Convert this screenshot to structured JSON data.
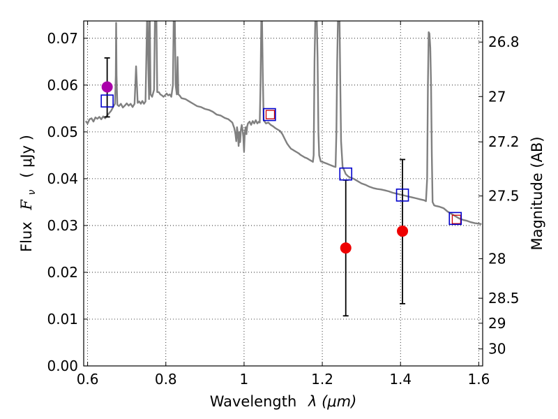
{
  "chart_data": {
    "type": "scatter",
    "xlabel_text": "Wavelength",
    "xlabel_math": "λ (μm)",
    "ylabel_text": "Flux",
    "ylabel_math": "F",
    "ylabel_math_sub": "ν",
    "ylabel_unit": "( μJy )",
    "ylabel_right": "Magnitude (AB)",
    "xlim": [
      0.59,
      1.61
    ],
    "ylim": [
      0.0,
      0.0737
    ],
    "grid": true,
    "x_ticks": [
      {
        "value": 0.6,
        "label": "0.6"
      },
      {
        "value": 0.8,
        "label": "0.8"
      },
      {
        "value": 1.0,
        "label": "1"
      },
      {
        "value": 1.2,
        "label": "1.2"
      },
      {
        "value": 1.4,
        "label": "1.4"
      },
      {
        "value": 1.6,
        "label": "1.6"
      }
    ],
    "y_ticks": [
      {
        "value": 0.0,
        "label": "0.00"
      },
      {
        "value": 0.01,
        "label": "0.01"
      },
      {
        "value": 0.02,
        "label": "0.02"
      },
      {
        "value": 0.03,
        "label": "0.03"
      },
      {
        "value": 0.04,
        "label": "0.04"
      },
      {
        "value": 0.05,
        "label": "0.05"
      },
      {
        "value": 0.06,
        "label": "0.06"
      },
      {
        "value": 0.07,
        "label": "0.07"
      }
    ],
    "right_ticks": [
      {
        "mag": 26.8,
        "label": "26.8"
      },
      {
        "mag": 27.0,
        "label": "27"
      },
      {
        "mag": 27.2,
        "label": "27.2"
      },
      {
        "mag": 27.5,
        "label": "27.5"
      },
      {
        "mag": 28.0,
        "label": "28"
      },
      {
        "mag": 28.5,
        "label": "28.5"
      },
      {
        "mag": 29.0,
        "label": "29"
      },
      {
        "mag": 30.0,
        "label": "30"
      }
    ],
    "model_spectrum": {
      "color": "#808080",
      "points": [
        [
          0.595,
          0.0523
        ],
        [
          0.6,
          0.0518
        ],
        [
          0.605,
          0.0527
        ],
        [
          0.61,
          0.0529
        ],
        [
          0.615,
          0.0522
        ],
        [
          0.62,
          0.0531
        ],
        [
          0.625,
          0.0528
        ],
        [
          0.63,
          0.0532
        ],
        [
          0.635,
          0.0527
        ],
        [
          0.64,
          0.0533
        ],
        [
          0.645,
          0.0529
        ],
        [
          0.65,
          0.0535
        ],
        [
          0.655,
          0.054
        ],
        [
          0.66,
          0.0545
        ],
        [
          0.665,
          0.0553
        ],
        [
          0.67,
          0.056
        ],
        [
          0.672,
          0.062
        ],
        [
          0.673,
          0.0733
        ],
        [
          0.674,
          0.062
        ],
        [
          0.676,
          0.0558
        ],
        [
          0.68,
          0.0555
        ],
        [
          0.685,
          0.056
        ],
        [
          0.69,
          0.0552
        ],
        [
          0.695,
          0.0556
        ],
        [
          0.7,
          0.0561
        ],
        [
          0.705,
          0.0556
        ],
        [
          0.71,
          0.056
        ],
        [
          0.715,
          0.0553
        ],
        [
          0.72,
          0.056
        ],
        [
          0.722,
          0.06
        ],
        [
          0.724,
          0.064
        ],
        [
          0.726,
          0.06
        ],
        [
          0.728,
          0.0562
        ],
        [
          0.732,
          0.0565
        ],
        [
          0.736,
          0.056
        ],
        [
          0.74,
          0.0566
        ],
        [
          0.744,
          0.056
        ],
        [
          0.748,
          0.0565
        ],
        [
          0.75,
          0.065
        ],
        [
          0.752,
          0.0737
        ],
        [
          0.753,
          0.0737
        ],
        [
          0.755,
          0.065
        ],
        [
          0.757,
          0.057
        ],
        [
          0.758,
          0.0737
        ],
        [
          0.759,
          0.0737
        ],
        [
          0.761,
          0.058
        ],
        [
          0.765,
          0.0575
        ],
        [
          0.77,
          0.059
        ],
        [
          0.772,
          0.0737
        ],
        [
          0.776,
          0.0737
        ],
        [
          0.778,
          0.0585
        ],
        [
          0.782,
          0.0585
        ],
        [
          0.786,
          0.058
        ],
        [
          0.79,
          0.0578
        ],
        [
          0.794,
          0.0575
        ],
        [
          0.798,
          0.0578
        ],
        [
          0.802,
          0.0582
        ],
        [
          0.806,
          0.0578
        ],
        [
          0.81,
          0.058
        ],
        [
          0.814,
          0.0575
        ],
        [
          0.818,
          0.06
        ],
        [
          0.82,
          0.0737
        ],
        [
          0.823,
          0.0737
        ],
        [
          0.825,
          0.06
        ],
        [
          0.828,
          0.058
        ],
        [
          0.83,
          0.066
        ],
        [
          0.832,
          0.058
        ],
        [
          0.835,
          0.0578
        ],
        [
          0.84,
          0.0572
        ],
        [
          0.85,
          0.057
        ],
        [
          0.86,
          0.0565
        ],
        [
          0.87,
          0.056
        ],
        [
          0.88,
          0.0555
        ],
        [
          0.89,
          0.0553
        ],
        [
          0.9,
          0.0549
        ],
        [
          0.91,
          0.0547
        ],
        [
          0.92,
          0.0543
        ],
        [
          0.93,
          0.0537
        ],
        [
          0.94,
          0.0535
        ],
        [
          0.95,
          0.053
        ],
        [
          0.96,
          0.0527
        ],
        [
          0.97,
          0.052
        ],
        [
          0.975,
          0.0508
        ],
        [
          0.978,
          0.0495
        ],
        [
          0.98,
          0.048
        ],
        [
          0.982,
          0.051
        ],
        [
          0.984,
          0.0498
        ],
        [
          0.986,
          0.047
        ],
        [
          0.988,
          0.05
        ],
        [
          0.99,
          0.0478
        ],
        [
          0.992,
          0.0505
        ],
        [
          0.994,
          0.0515
        ],
        [
          0.996,
          0.0505
        ],
        [
          0.998,
          0.049
        ],
        [
          1.0,
          0.0458
        ],
        [
          1.002,
          0.05
        ],
        [
          1.004,
          0.051
        ],
        [
          1.006,
          0.0495
        ],
        [
          1.008,
          0.0512
        ],
        [
          1.01,
          0.0518
        ],
        [
          1.014,
          0.0522
        ],
        [
          1.018,
          0.0515
        ],
        [
          1.022,
          0.0523
        ],
        [
          1.026,
          0.0518
        ],
        [
          1.03,
          0.0525
        ],
        [
          1.034,
          0.0518
        ],
        [
          1.038,
          0.0522
        ],
        [
          1.04,
          0.052
        ],
        [
          1.042,
          0.06
        ],
        [
          1.044,
          0.0737
        ],
        [
          1.046,
          0.0737
        ],
        [
          1.048,
          0.062
        ],
        [
          1.05,
          0.0525
        ],
        [
          1.056,
          0.0518
        ],
        [
          1.062,
          0.052
        ],
        [
          1.068,
          0.0515
        ],
        [
          1.074,
          0.0512
        ],
        [
          1.08,
          0.0508
        ],
        [
          1.086,
          0.0505
        ],
        [
          1.092,
          0.0502
        ],
        [
          1.098,
          0.0495
        ],
        [
          1.104,
          0.0485
        ],
        [
          1.11,
          0.0475
        ],
        [
          1.116,
          0.0468
        ],
        [
          1.12,
          0.0464
        ],
        [
          1.124,
          0.0462
        ],
        [
          1.128,
          0.046
        ],
        [
          1.132,
          0.0458
        ],
        [
          1.136,
          0.0456
        ],
        [
          1.14,
          0.0454
        ],
        [
          1.144,
          0.0451
        ],
        [
          1.148,
          0.0449
        ],
        [
          1.152,
          0.0447
        ],
        [
          1.156,
          0.0445
        ],
        [
          1.16,
          0.0444
        ],
        [
          1.164,
          0.0442
        ],
        [
          1.168,
          0.044
        ],
        [
          1.172,
          0.0438
        ],
        [
          1.176,
          0.0436
        ],
        [
          1.178,
          0.045
        ],
        [
          1.18,
          0.065
        ],
        [
          1.182,
          0.0737
        ],
        [
          1.186,
          0.0737
        ],
        [
          1.188,
          0.066
        ],
        [
          1.19,
          0.05
        ],
        [
          1.192,
          0.045
        ],
        [
          1.196,
          0.0437
        ],
        [
          1.2,
          0.0436
        ],
        [
          1.206,
          0.0434
        ],
        [
          1.212,
          0.0432
        ],
        [
          1.218,
          0.043
        ],
        [
          1.224,
          0.0428
        ],
        [
          1.23,
          0.0426
        ],
        [
          1.234,
          0.0425
        ],
        [
          1.236,
          0.05
        ],
        [
          1.238,
          0.065
        ],
        [
          1.24,
          0.0737
        ],
        [
          1.244,
          0.0737
        ],
        [
          1.246,
          0.06
        ],
        [
          1.248,
          0.048
        ],
        [
          1.252,
          0.0425
        ],
        [
          1.256,
          0.0418
        ],
        [
          1.26,
          0.041
        ],
        [
          1.266,
          0.0405
        ],
        [
          1.272,
          0.0402
        ],
        [
          1.28,
          0.04
        ],
        [
          1.29,
          0.0395
        ],
        [
          1.3,
          0.039
        ],
        [
          1.31,
          0.0387
        ],
        [
          1.32,
          0.0383
        ],
        [
          1.33,
          0.038
        ],
        [
          1.34,
          0.0378
        ],
        [
          1.35,
          0.0377
        ],
        [
          1.36,
          0.0375
        ],
        [
          1.37,
          0.0373
        ],
        [
          1.38,
          0.037
        ],
        [
          1.39,
          0.0368
        ],
        [
          1.4,
          0.0366
        ],
        [
          1.41,
          0.0364
        ],
        [
          1.42,
          0.0362
        ],
        [
          1.43,
          0.036
        ],
        [
          1.44,
          0.0358
        ],
        [
          1.45,
          0.0356
        ],
        [
          1.46,
          0.0354
        ],
        [
          1.465,
          0.0352
        ],
        [
          1.468,
          0.04
        ],
        [
          1.47,
          0.06
        ],
        [
          1.472,
          0.0713
        ],
        [
          1.474,
          0.071
        ],
        [
          1.476,
          0.068
        ],
        [
          1.478,
          0.06
        ],
        [
          1.48,
          0.045
        ],
        [
          1.482,
          0.035
        ],
        [
          1.486,
          0.0343
        ],
        [
          1.49,
          0.0342
        ],
        [
          1.5,
          0.034
        ],
        [
          1.51,
          0.0337
        ],
        [
          1.52,
          0.033
        ],
        [
          1.53,
          0.0325
        ],
        [
          1.54,
          0.032
        ],
        [
          1.55,
          0.0315
        ],
        [
          1.56,
          0.0312
        ],
        [
          1.57,
          0.031
        ],
        [
          1.58,
          0.0307
        ],
        [
          1.59,
          0.0305
        ],
        [
          1.6,
          0.0304
        ],
        [
          1.607,
          0.0303
        ]
      ]
    },
    "model_squares": {
      "edge_color": "#0000cc",
      "points": [
        {
          "x": 0.65,
          "y": 0.0566
        },
        {
          "x": 1.065,
          "y": 0.0537
        },
        {
          "x": 1.26,
          "y": 0.041
        },
        {
          "x": 1.405,
          "y": 0.0365
        },
        {
          "x": 1.54,
          "y": 0.0315
        }
      ]
    },
    "filter_squares": {
      "edge_color": "#cc0000",
      "points": [
        {
          "x": 1.067,
          "y": 0.0537
        },
        {
          "x": 1.543,
          "y": 0.0313
        }
      ]
    },
    "observations": [
      {
        "x": 0.65,
        "y": 0.0596,
        "ylo": 0.0532,
        "yhi": 0.0658,
        "color": "#aa00aa"
      },
      {
        "x": 1.26,
        "y": 0.0252,
        "ylo": 0.0107,
        "yhi": 0.0397,
        "color": "#ee0000"
      },
      {
        "x": 1.405,
        "y": 0.0288,
        "ylo": 0.0133,
        "yhi": 0.0441,
        "color": "#ee0000"
      }
    ]
  }
}
